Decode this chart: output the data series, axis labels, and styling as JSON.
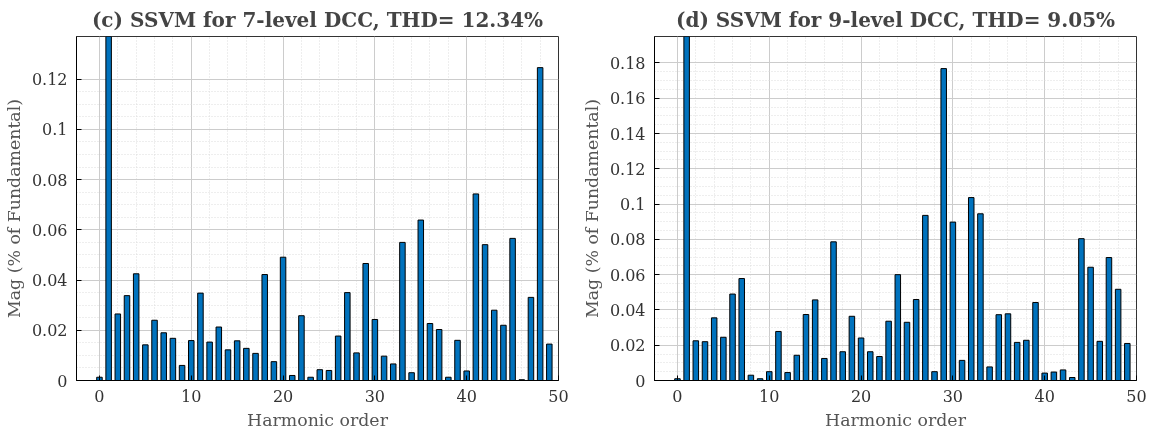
{
  "chart_data": [
    {
      "type": "bar",
      "title": "(c) SSVM for 7-level DCC, THD= 12.34%",
      "xlabel": "Harmonic order",
      "ylabel": "Mag (% of Fundamental)",
      "x": [
        0,
        1,
        2,
        3,
        4,
        5,
        6,
        7,
        8,
        9,
        10,
        11,
        12,
        13,
        14,
        15,
        16,
        17,
        18,
        19,
        20,
        21,
        22,
        23,
        24,
        25,
        26,
        27,
        28,
        29,
        30,
        31,
        32,
        33,
        34,
        35,
        36,
        37,
        38,
        39,
        40,
        41,
        42,
        43,
        44,
        45,
        46,
        47,
        48,
        49
      ],
      "values": [
        0.0013,
        0.137,
        0.0265,
        0.0338,
        0.0425,
        0.0142,
        0.024,
        0.019,
        0.0168,
        0.006,
        0.0159,
        0.0348,
        0.0153,
        0.0213,
        0.0122,
        0.0158,
        0.0128,
        0.0108,
        0.0422,
        0.0075,
        0.0491,
        0.002,
        0.0258,
        0.0013,
        0.0043,
        0.004,
        0.0177,
        0.035,
        0.011,
        0.0466,
        0.0243,
        0.0097,
        0.0066,
        0.055,
        0.0031,
        0.0639,
        0.0227,
        0.0203,
        0.0013,
        0.016,
        0.0038,
        0.0743,
        0.0541,
        0.028,
        0.022,
        0.0566,
        0.0003,
        0.0331,
        0.1246,
        0.0145
      ],
      "color": "#0072bd",
      "xlim": [
        -2.5,
        50
      ],
      "xticks": [
        0,
        10,
        20,
        30,
        40,
        50
      ],
      "ylim": [
        0,
        0.137
      ],
      "yticks": [
        0,
        0.02,
        0.04,
        0.06,
        0.08,
        0.1,
        0.12
      ],
      "grid": true
    },
    {
      "type": "bar",
      "title": "(d) SSVM for 9-level DCC, THD= 9.05%",
      "xlabel": "Harmonic order",
      "ylabel": "Mag (% of Fundamental)",
      "x": [
        0,
        1,
        2,
        3,
        4,
        5,
        6,
        7,
        8,
        9,
        10,
        11,
        12,
        13,
        14,
        15,
        16,
        17,
        18,
        19,
        20,
        21,
        22,
        23,
        24,
        25,
        26,
        27,
        28,
        29,
        30,
        31,
        32,
        33,
        34,
        35,
        36,
        37,
        38,
        39,
        40,
        41,
        42,
        43,
        44,
        45,
        46,
        47,
        48,
        49
      ],
      "values": [
        0.001,
        0.195,
        0.0225,
        0.022,
        0.0355,
        0.0245,
        0.049,
        0.0578,
        0.003,
        0.001,
        0.005,
        0.0278,
        0.0045,
        0.0143,
        0.0374,
        0.0457,
        0.0125,
        0.0786,
        0.0163,
        0.0364,
        0.0241,
        0.0163,
        0.0136,
        0.0336,
        0.06,
        0.033,
        0.0459,
        0.0936,
        0.005,
        0.1768,
        0.0898,
        0.0114,
        0.1037,
        0.0945,
        0.0077,
        0.0373,
        0.0378,
        0.0216,
        0.0228,
        0.0442,
        0.0042,
        0.0048,
        0.006,
        0.0017,
        0.0804,
        0.0642,
        0.0222,
        0.0697,
        0.0517,
        0.021
      ],
      "color": "#0072bd",
      "xlim": [
        -2.5,
        50
      ],
      "xticks": [
        0,
        10,
        20,
        30,
        40,
        50
      ],
      "ylim": [
        0,
        0.195
      ],
      "yticks": [
        0,
        0.02,
        0.04,
        0.06,
        0.08,
        0.1,
        0.12,
        0.14,
        0.16,
        0.18
      ],
      "grid": true
    }
  ]
}
